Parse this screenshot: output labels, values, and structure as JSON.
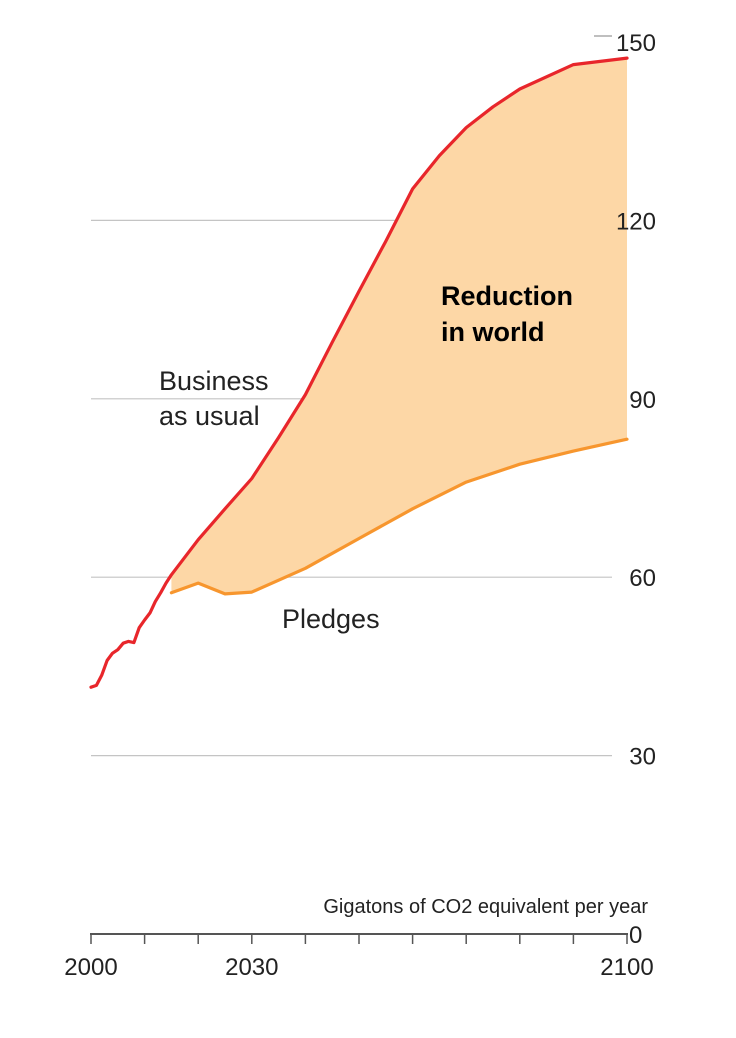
{
  "chart_data": {
    "type": "area",
    "title": "",
    "xlabel": "",
    "ylabel": "Gigatons of CO2 equivalent per year",
    "xlim": [
      2000,
      2100
    ],
    "ylim": [
      0,
      150
    ],
    "grid": true,
    "x_ticks": [
      2000,
      2010,
      2020,
      2030,
      2040,
      2050,
      2060,
      2070,
      2080,
      2090,
      2100
    ],
    "x_tick_labels": [
      {
        "value": 2000,
        "label": "2000"
      },
      {
        "value": 2030,
        "label": "2030"
      },
      {
        "value": 2100,
        "label": "2100"
      }
    ],
    "y_ticks": [
      0,
      30,
      60,
      90,
      120,
      150
    ],
    "y_tick_labels": [
      "0",
      "30",
      "60",
      "90",
      "120",
      "150"
    ],
    "series": [
      {
        "name": "Business as usual",
        "label_lines": [
          "Business",
          "as usual"
        ],
        "color": "#e8262b",
        "x": [
          2000,
          2001,
          2002,
          2003,
          2004,
          2005,
          2006,
          2007,
          2008,
          2009,
          2010,
          2011,
          2012,
          2013,
          2014,
          2015,
          2020,
          2025,
          2030,
          2035,
          2040,
          2045,
          2050,
          2055,
          2060,
          2065,
          2070,
          2075,
          2080,
          2090,
          2100
        ],
        "values": [
          41.5,
          41.8,
          43.5,
          46.0,
          47.2,
          47.8,
          48.9,
          49.2,
          49.0,
          51.5,
          52.8,
          54.0,
          55.9,
          57.4,
          59.0,
          60.4,
          66.3,
          71.5,
          76.6,
          83.5,
          90.7,
          99.5,
          108.1,
          116.5,
          125.3,
          130.9,
          135.6,
          139.1,
          142.1,
          146.2,
          147.3
        ]
      },
      {
        "name": "Pledges",
        "label_lines": [
          "Pledges"
        ],
        "color": "#f7962e",
        "x": [
          2015,
          2020,
          2025,
          2030,
          2040,
          2050,
          2060,
          2070,
          2080,
          2090,
          2100
        ],
        "values": [
          57.4,
          59.0,
          57.2,
          57.5,
          61.5,
          66.5,
          71.5,
          76.0,
          79.0,
          81.2,
          83.2
        ]
      }
    ],
    "region": {
      "label_lines": [
        "Reduction",
        "in world"
      ],
      "fill_color": "#fdd7a6"
    }
  }
}
